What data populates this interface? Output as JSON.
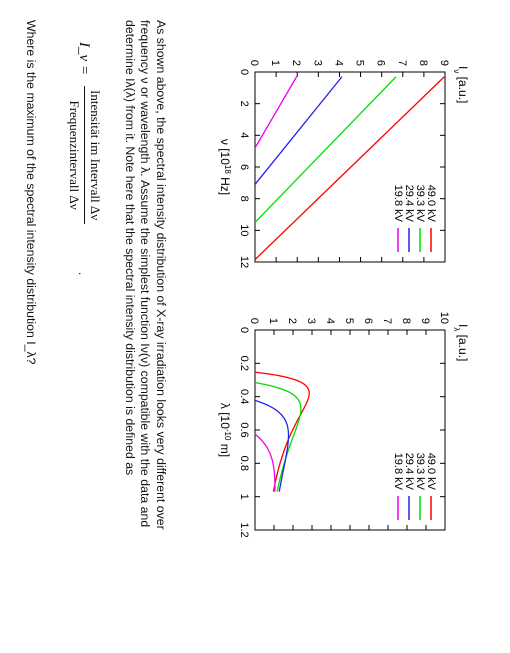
{
  "chart_data": [
    {
      "type": "line",
      "ylabel": "I_ν [a.u.]",
      "xlabel": "ν [10^18 Hz]",
      "xlim": [
        0,
        12
      ],
      "ylim": [
        0,
        9
      ],
      "xticks": [
        0,
        2,
        4,
        6,
        8,
        10,
        12
      ],
      "yticks": [
        0,
        1,
        2,
        3,
        4,
        5,
        6,
        7,
        8,
        9
      ],
      "legend_position": "top-right",
      "series": [
        {
          "name": "49.0 kV",
          "color": "#ff0000",
          "x": [
            0,
            11.85
          ],
          "y": [
            9.2,
            0
          ]
        },
        {
          "name": "39.3 kV",
          "color": "#00dd00",
          "x": [
            0,
            9.5
          ],
          "y": [
            6.9,
            0
          ]
        },
        {
          "name": "29.4 kV",
          "color": "#2222ee",
          "x": [
            0,
            7.1
          ],
          "y": [
            4.3,
            0
          ]
        },
        {
          "name": "19.8 kV",
          "color": "#ee00ee",
          "x": [
            0,
            4.8
          ],
          "y": [
            2.1,
            0
          ]
        }
      ],
      "plotted_x_min": 0.3
    },
    {
      "type": "line",
      "ylabel": "I_λ [a.u.]",
      "xlabel": "λ [10^-10 m]",
      "xlim": [
        0,
        1.2
      ],
      "ylim": [
        0,
        10
      ],
      "xticks": [
        0,
        0.2,
        0.4,
        0.6,
        0.8,
        1,
        1.2
      ],
      "xtick_labels": [
        "0",
        "0.2",
        "0.4",
        "0.6",
        "0.8",
        "1",
        "1.2"
      ],
      "yticks": [
        0,
        1,
        2,
        3,
        4,
        5,
        6,
        7,
        8,
        9,
        10
      ],
      "legend_position": "top-right",
      "series": [
        {
          "name": "49.0 kV",
          "color": "#ff0000",
          "lambda0": 0.2531,
          "amplitude": 9.2
        },
        {
          "name": "39.3 kV",
          "color": "#00dd00",
          "lambda0": 0.3156,
          "amplitude": 6.9
        },
        {
          "name": "29.4 kV",
          "color": "#2222ee",
          "lambda0": 0.4225,
          "amplitude": 4.3
        },
        {
          "name": "19.8 kV",
          "color": "#ee00ee",
          "lambda0": 0.625,
          "amplitude": 2.1
        }
      ],
      "plotted_x_max": 0.97
    }
  ],
  "text": {
    "paragraph_line1": "As shown above, the spectral intensity distribution of X-ray irradiation looks very different over",
    "paragraph_line2": "frequency ν or wavelength λ. Assume the simplest function Iν(ν) compatible with the data and",
    "paragraph_line3": "determine Iλ(λ) from it. Note here that the spectral intensity distribution is defined as",
    "formula_lhs": "I_ν =",
    "formula_numerator": "Intensität im Intervall Δν",
    "formula_denominator": "Frequenzintervall Δν",
    "formula_end": ".",
    "question": "Where is the maximum of the spectral intensity distribution I_λ?"
  }
}
